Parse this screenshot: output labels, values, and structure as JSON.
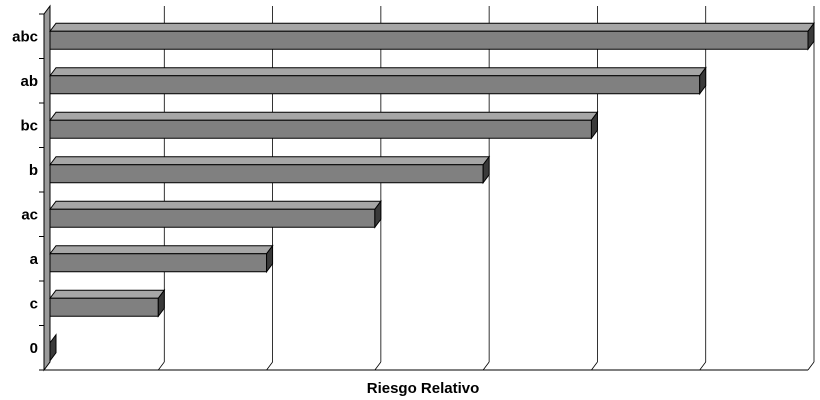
{
  "chart_data": {
    "type": "bar",
    "orientation": "horizontal",
    "style": "3d",
    "categories": [
      "abc",
      "ab",
      "bc",
      "b",
      "ac",
      "a",
      "c",
      "0"
    ],
    "values": [
      7,
      6,
      5,
      4,
      3,
      2,
      1,
      0
    ],
    "xlabel": "Riesgo Relativo",
    "ylabel": "",
    "xlim": [
      0,
      7
    ],
    "grid": true,
    "legend": "none",
    "colors": {
      "bar_front": "#808080",
      "bar_top": "#a6a6a6",
      "bar_side": "#3a3a3a",
      "wall": "#9a9a9a",
      "grid": "#000000"
    }
  }
}
